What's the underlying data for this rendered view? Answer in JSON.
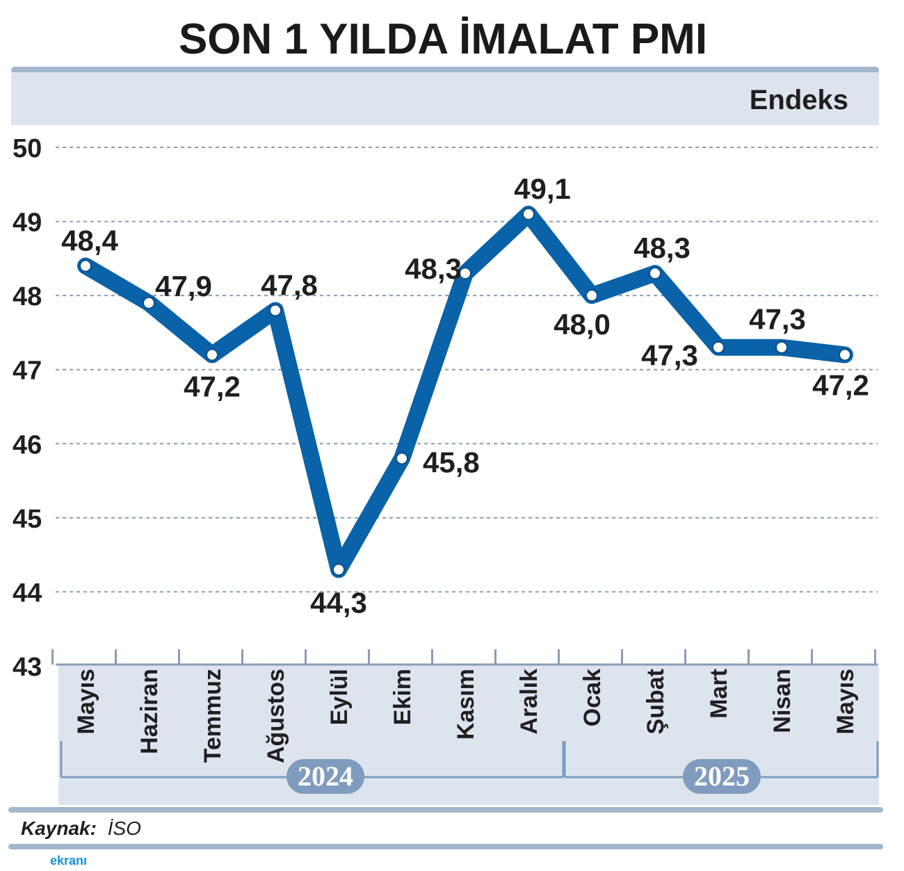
{
  "chart_data": {
    "type": "line",
    "title": "SON 1 YILDA İMALAT PMI",
    "ylabel": "Endeks",
    "ylim": [
      43,
      50
    ],
    "yticks": [
      43,
      44,
      45,
      46,
      47,
      48,
      49,
      50
    ],
    "grid": true,
    "categories": [
      "Mayıs",
      "Haziran",
      "Temmuz",
      "Ağustos",
      "Eylül",
      "Ekim",
      "Kasım",
      "Aralık",
      "Ocak",
      "Şubat",
      "Mart",
      "Nisan",
      "Mayıs"
    ],
    "values": [
      48.4,
      47.9,
      47.2,
      47.8,
      44.3,
      45.8,
      48.3,
      49.1,
      48.0,
      48.3,
      47.3,
      47.3,
      47.2
    ],
    "value_labels": [
      "48,4",
      "47,9",
      "47,2",
      "47,8",
      "44,3",
      "45,8",
      "48,3",
      "49,1",
      "48,0",
      "48,3",
      "47,3",
      "47,3",
      "47,2"
    ],
    "years": [
      {
        "label": "2024",
        "from": 0,
        "to": 7
      },
      {
        "label": "2025",
        "from": 8,
        "to": 12
      }
    ],
    "line_color": "#0a62a8",
    "band_color": "#dde4ee",
    "year_badge_color": "#7f9cbf"
  },
  "source": {
    "key": "Kaynak:",
    "value": "İSO"
  },
  "watermark": "ekranı"
}
